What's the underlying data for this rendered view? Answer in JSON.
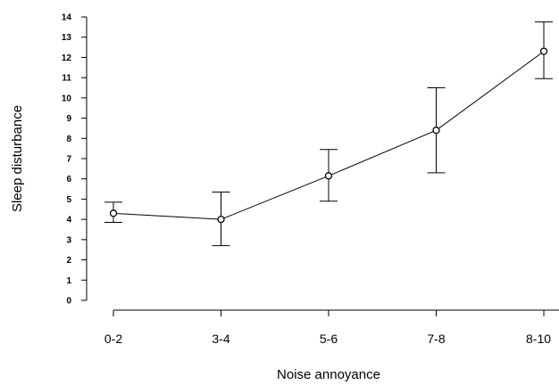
{
  "chart_data": {
    "type": "line",
    "title": "",
    "xlabel": "Noise annoyance",
    "ylabel": "Sleep disturbance",
    "categories": [
      "0-2",
      "3-4",
      "5-6",
      "7-8",
      "8-10"
    ],
    "y_ticks": [
      0,
      1,
      2,
      3,
      4,
      5,
      6,
      7,
      8,
      9,
      10,
      11,
      12,
      13,
      14
    ],
    "ylim": [
      0,
      14
    ],
    "grid": false,
    "legend": "none",
    "series": [
      {
        "values": [
          4.3,
          4.0,
          6.15,
          8.4,
          12.3
        ],
        "error_low": [
          3.85,
          2.7,
          4.9,
          6.3,
          10.95
        ],
        "error_high": [
          4.85,
          5.35,
          7.45,
          10.5,
          13.75
        ]
      }
    ]
  }
}
